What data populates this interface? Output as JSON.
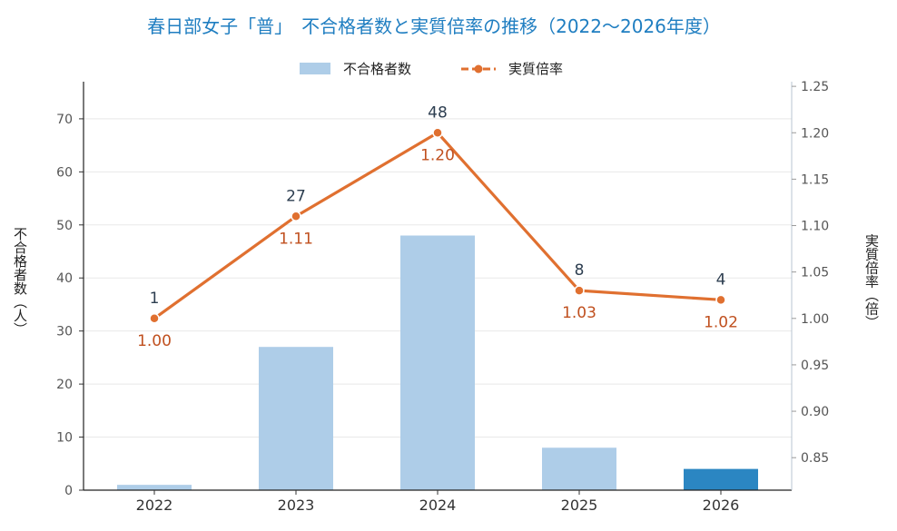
{
  "chart_data": {
    "type": "bar+line",
    "title": "春日部女子「普」　不合格者数と実質倍率の推移（2022〜2026年度）",
    "categories": [
      "2022",
      "2023",
      "2024",
      "2025",
      "2026"
    ],
    "series": [
      {
        "name": "不合格者数",
        "type": "bar",
        "axis": "left",
        "values": [
          1,
          27,
          48,
          8,
          4
        ],
        "labels": [
          "1",
          "27",
          "48",
          "8",
          "4"
        ],
        "color": "#aecde8",
        "highlight_color": "#2b86c2",
        "highlight_index": 4
      },
      {
        "name": "実質倍率",
        "type": "line",
        "axis": "right",
        "values": [
          1.0,
          1.11,
          1.2,
          1.03,
          1.02
        ],
        "labels": [
          "1.00",
          "1.11",
          "1.20",
          "1.03",
          "1.02"
        ],
        "color": "#e07030"
      }
    ],
    "ylabel_left": "不合格者数（人）",
    "ylabel_right": "実質倍率（倍）",
    "ylim_left": [
      0,
      77
    ],
    "yticks_left": [
      0,
      10,
      20,
      30,
      40,
      50,
      60,
      70
    ],
    "ylim_right": [
      0.815,
      1.255
    ],
    "yticks_right": [
      0.85,
      0.9,
      0.95,
      1.0,
      1.05,
      1.1,
      1.15,
      1.2,
      1.25
    ],
    "grid": true,
    "legend": "top-center"
  }
}
